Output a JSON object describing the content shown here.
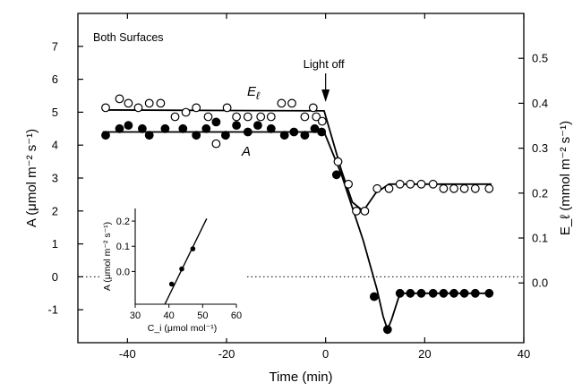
{
  "chart_data": {
    "type": "scatter",
    "panel_label": "Both Surfaces",
    "xlabel": "Time (min)",
    "ylabel_left": "A (μmol m⁻² s⁻¹)",
    "ylabel_right": "E_ℓ (mmol m⁻² s⁻¹)",
    "xlim": [
      -50,
      40
    ],
    "ylim_left": [
      -2,
      8
    ],
    "ylim_right": [
      -0.133,
      0.6
    ],
    "x_ticks": [
      -40,
      -20,
      0,
      20,
      40
    ],
    "x_tick_labels": [
      "-40",
      "-20",
      "0",
      "20",
      "40"
    ],
    "y_ticks_left": [
      -1,
      0,
      1,
      2,
      3,
      4,
      5,
      6,
      7
    ],
    "y_tick_labels_left": [
      "-1",
      "0",
      "1",
      "2",
      "3",
      "4",
      "5",
      "6",
      "7"
    ],
    "y_ticks_right": [
      0.0,
      0.1,
      0.2,
      0.3,
      0.4,
      0.5
    ],
    "y_tick_labels_right": [
      "0.0",
      "0.1",
      "0.2",
      "0.3",
      "0.4",
      "0.5"
    ],
    "zero_line": {
      "y": 0,
      "style": "dotted"
    },
    "annotations": [
      {
        "text": "Light off",
        "x": 0,
        "y": 5.2,
        "type": "arrow"
      },
      {
        "text": "E",
        "subscript": "ℓ",
        "label_for": "E_l"
      },
      {
        "text": "A",
        "label_for": "A"
      }
    ],
    "series": [
      {
        "name": "E_l",
        "axis": "right",
        "marker": "open-circle",
        "points": [
          [
            -44.4,
            0.39
          ],
          [
            -41.6,
            0.41
          ],
          [
            -39.8,
            0.4
          ],
          [
            -37.8,
            0.39
          ],
          [
            -35.6,
            0.4
          ],
          [
            -33.3,
            0.4
          ],
          [
            -30.4,
            0.37
          ],
          [
            -28.2,
            0.38
          ],
          [
            -26.1,
            0.39
          ],
          [
            -23.7,
            0.37
          ],
          [
            -22.1,
            0.31
          ],
          [
            -19.9,
            0.39
          ],
          [
            -18.0,
            0.37
          ],
          [
            -15.7,
            0.37
          ],
          [
            -13.1,
            0.37
          ],
          [
            -11.0,
            0.37
          ],
          [
            -8.9,
            0.4
          ],
          [
            -6.8,
            0.4
          ],
          [
            -4.2,
            0.37
          ],
          [
            -2.5,
            0.39
          ],
          [
            -1.9,
            0.37
          ],
          [
            -0.7,
            0.36
          ],
          [
            2.5,
            0.27
          ],
          [
            4.6,
            0.22
          ],
          [
            6.2,
            0.16
          ],
          [
            7.9,
            0.16
          ],
          [
            10.4,
            0.21
          ],
          [
            12.8,
            0.21
          ],
          [
            15.0,
            0.22
          ],
          [
            17.1,
            0.22
          ],
          [
            19.3,
            0.22
          ],
          [
            21.7,
            0.22
          ],
          [
            23.8,
            0.21
          ],
          [
            25.9,
            0.21
          ],
          [
            28.0,
            0.21
          ],
          [
            30.2,
            0.21
          ],
          [
            33.0,
            0.21
          ]
        ]
      },
      {
        "name": "A",
        "axis": "left",
        "marker": "filled-circle",
        "points": [
          [
            -44.4,
            4.3
          ],
          [
            -41.6,
            4.5
          ],
          [
            -39.8,
            4.6
          ],
          [
            -37.0,
            4.5
          ],
          [
            -35.6,
            4.3
          ],
          [
            -32.4,
            4.5
          ],
          [
            -28.8,
            4.5
          ],
          [
            -26.1,
            4.3
          ],
          [
            -24.1,
            4.5
          ],
          [
            -22.1,
            4.7
          ],
          [
            -20.2,
            4.3
          ],
          [
            -18.0,
            4.6
          ],
          [
            -15.7,
            4.4
          ],
          [
            -13.7,
            4.6
          ],
          [
            -11.0,
            4.5
          ],
          [
            -8.3,
            4.3
          ],
          [
            -6.4,
            4.4
          ],
          [
            -4.2,
            4.3
          ],
          [
            -2.2,
            4.5
          ],
          [
            -0.8,
            4.4
          ],
          [
            2.2,
            3.1
          ],
          [
            9.8,
            -0.6
          ],
          [
            12.5,
            -1.6
          ],
          [
            15.0,
            -0.5
          ],
          [
            17.1,
            -0.5
          ],
          [
            19.3,
            -0.5
          ],
          [
            21.7,
            -0.5
          ],
          [
            23.8,
            -0.5
          ],
          [
            25.9,
            -0.5
          ],
          [
            28.0,
            -0.5
          ],
          [
            30.2,
            -0.5
          ],
          [
            33.0,
            -0.5
          ]
        ]
      }
    ],
    "fit_lines": [
      {
        "name": "E_l fit",
        "axis": "right",
        "points": [
          [
            -45,
            0.385
          ],
          [
            -0.3,
            0.383
          ],
          [
            3.2,
            0.25
          ],
          [
            5.4,
            0.18
          ],
          [
            7.6,
            0.16
          ],
          [
            10.1,
            0.2
          ],
          [
            12.8,
            0.22
          ],
          [
            33.5,
            0.22
          ]
        ]
      },
      {
        "name": "A fit",
        "axis": "left",
        "points": [
          [
            -45,
            4.4
          ],
          [
            -0.3,
            4.4
          ],
          [
            3.2,
            3.1
          ],
          [
            7.6,
            1.1
          ],
          [
            10.4,
            -0.4
          ],
          [
            11.6,
            -1.2
          ],
          [
            12.5,
            -1.6
          ],
          [
            13.3,
            -1.3
          ],
          [
            15.0,
            -0.5
          ],
          [
            33.5,
            -0.5
          ]
        ]
      }
    ],
    "inset": {
      "type": "line",
      "xlabel": "C_i (μmol mol⁻¹)",
      "ylabel": "A (μmol m⁻² s⁻¹)",
      "xlim": [
        30,
        60
      ],
      "ylim": [
        -0.13,
        0.25
      ],
      "x_ticks": [
        30,
        40,
        50,
        60
      ],
      "x_tick_labels": [
        "30",
        "40",
        "50",
        "60"
      ],
      "y_ticks": [
        0.0,
        0.1,
        0.2
      ],
      "y_tick_labels": [
        "0.0",
        "0.1",
        "0.2"
      ],
      "points": [
        [
          40.8,
          -0.05
        ],
        [
          43.8,
          0.01
        ],
        [
          47.1,
          0.09
        ]
      ],
      "fit_line": [
        [
          38.8,
          -0.13
        ],
        [
          51.2,
          0.21
        ]
      ]
    }
  }
}
